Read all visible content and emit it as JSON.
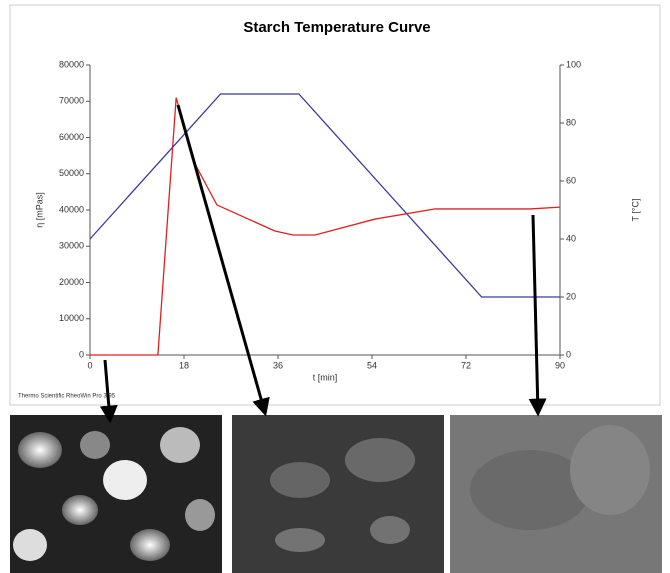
{
  "chart_data": {
    "type": "line",
    "title": "Starch Temperature Curve",
    "x_label": "t  [min]",
    "y_label": "η  [mPas]",
    "y2_label": "T  [°C]",
    "credit": "Thermo Scientific RheoWin Pro 3.95",
    "xlim": [
      0,
      90
    ],
    "xticks": [
      0,
      18,
      36,
      54,
      72,
      90
    ],
    "ylim": [
      0,
      80000
    ],
    "yticks": [
      0,
      10000,
      20000,
      30000,
      40000,
      50000,
      60000,
      70000,
      80000
    ],
    "y2lim": [
      0,
      100
    ],
    "y2ticks": [
      0,
      20,
      40,
      60,
      80,
      100
    ],
    "series": [
      {
        "color": "#e02020",
        "x": [
          0,
          13,
          16.5,
          20,
          24.3,
          35.4,
          38.9,
          43.1,
          54.6,
          66.1,
          84.3,
          90
        ],
        "values": [
          0,
          0,
          71000,
          53000,
          41400,
          34200,
          33100,
          33100,
          37500,
          40300,
          40300,
          40800
        ]
      },
      {
        "color": "#3a3a9a",
        "axis": "y2",
        "x": [
          0,
          25,
          40,
          75,
          90
        ],
        "values": [
          40,
          90,
          90,
          20,
          20
        ]
      }
    ]
  }
}
